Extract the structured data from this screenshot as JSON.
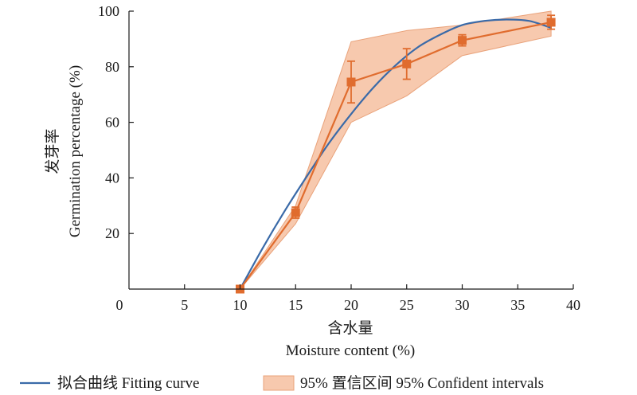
{
  "chart_data": {
    "type": "line",
    "xlabel_cn": "含水量",
    "xlabel_en": "Moisture content (%)",
    "ylabel_cn": "发芽率",
    "ylabel_en": "Germination percentage  (%)",
    "xlim": [
      0,
      40
    ],
    "ylim": [
      0,
      100
    ],
    "xticks": [
      0,
      5,
      10,
      15,
      20,
      25,
      30,
      35,
      40
    ],
    "yticks": [
      20,
      40,
      60,
      80,
      100
    ],
    "grid": false,
    "legend_position": "bottom",
    "series": [
      {
        "kind": "measured",
        "color": "#e06c2e",
        "x": [
          10,
          15,
          20,
          25,
          30,
          38
        ],
        "y": [
          0,
          27.5,
          74.5,
          81,
          89.5,
          96
        ],
        "err": [
          0.5,
          2,
          7.5,
          5.5,
          2,
          2.5
        ]
      }
    ],
    "confidence_band": {
      "name": "95% 置信区间 95% Confident intervals",
      "color": "#f7c9ae",
      "edge_color": "#e9a27a",
      "x": [
        10,
        15,
        20,
        25,
        30,
        38
      ],
      "lower": [
        0,
        23.5,
        60,
        69.5,
        84,
        91
      ],
      "upper": [
        0,
        30,
        89,
        93,
        95,
        100
      ]
    },
    "fit": {
      "name": "拟合曲线 Fitting curve",
      "color": "#3a6aa8",
      "x": [
        10,
        12,
        14,
        16,
        18,
        20,
        22,
        24,
        26,
        28,
        30,
        32,
        34,
        36,
        38
      ],
      "y": [
        0,
        14.5,
        28,
        40.5,
        52.5,
        63,
        72.5,
        80.5,
        87,
        91.5,
        95,
        96.5,
        97,
        96.5,
        94
      ]
    }
  }
}
